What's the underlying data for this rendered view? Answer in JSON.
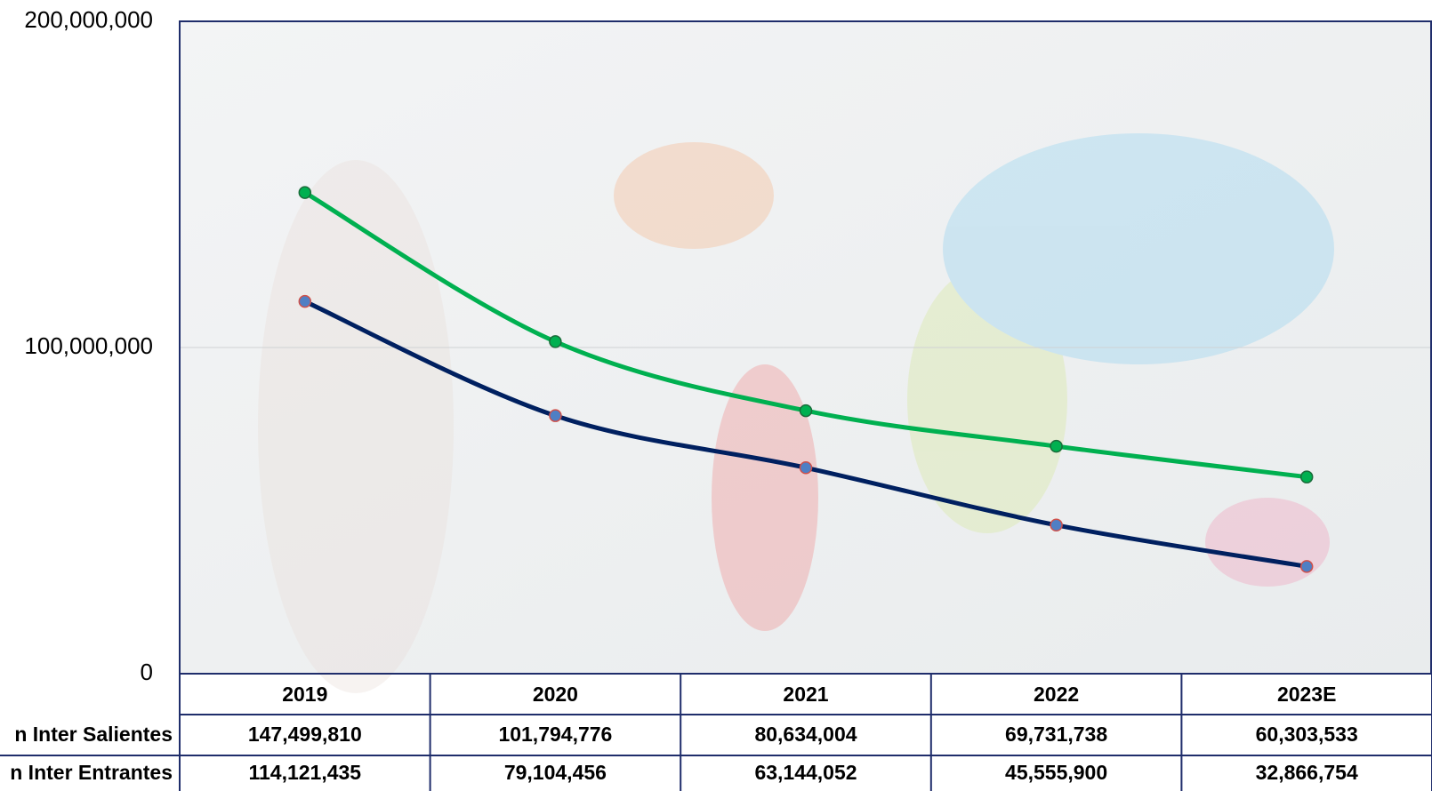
{
  "chart_data": {
    "type": "line",
    "categories": [
      "2019",
      "2020",
      "2021",
      "2022",
      "2023E"
    ],
    "series": [
      {
        "name": "n Inter Salientes",
        "color": "#00b050",
        "values": [
          147499810,
          101794776,
          80634004,
          69731738,
          60303533
        ],
        "value_labels": [
          "147,499,810",
          "101,794,776",
          "80,634,004",
          "69,731,738",
          "60,303,533"
        ]
      },
      {
        "name": "n Inter Entrantes",
        "color": "#002060",
        "values": [
          114121435,
          79104456,
          63144052,
          45555900,
          32866754
        ],
        "value_labels": [
          "114,121,435",
          "79,104,456",
          "63,144,052",
          "45,555,900",
          "32,866,754"
        ]
      }
    ],
    "ylim": [
      0,
      200000000
    ],
    "yticks": [
      0,
      {
        "value": 100000000,
        "label": "100,000,000"
      },
      {
        "value": 200000000,
        "label": "200,000,000"
      }
    ],
    "grid": true
  }
}
